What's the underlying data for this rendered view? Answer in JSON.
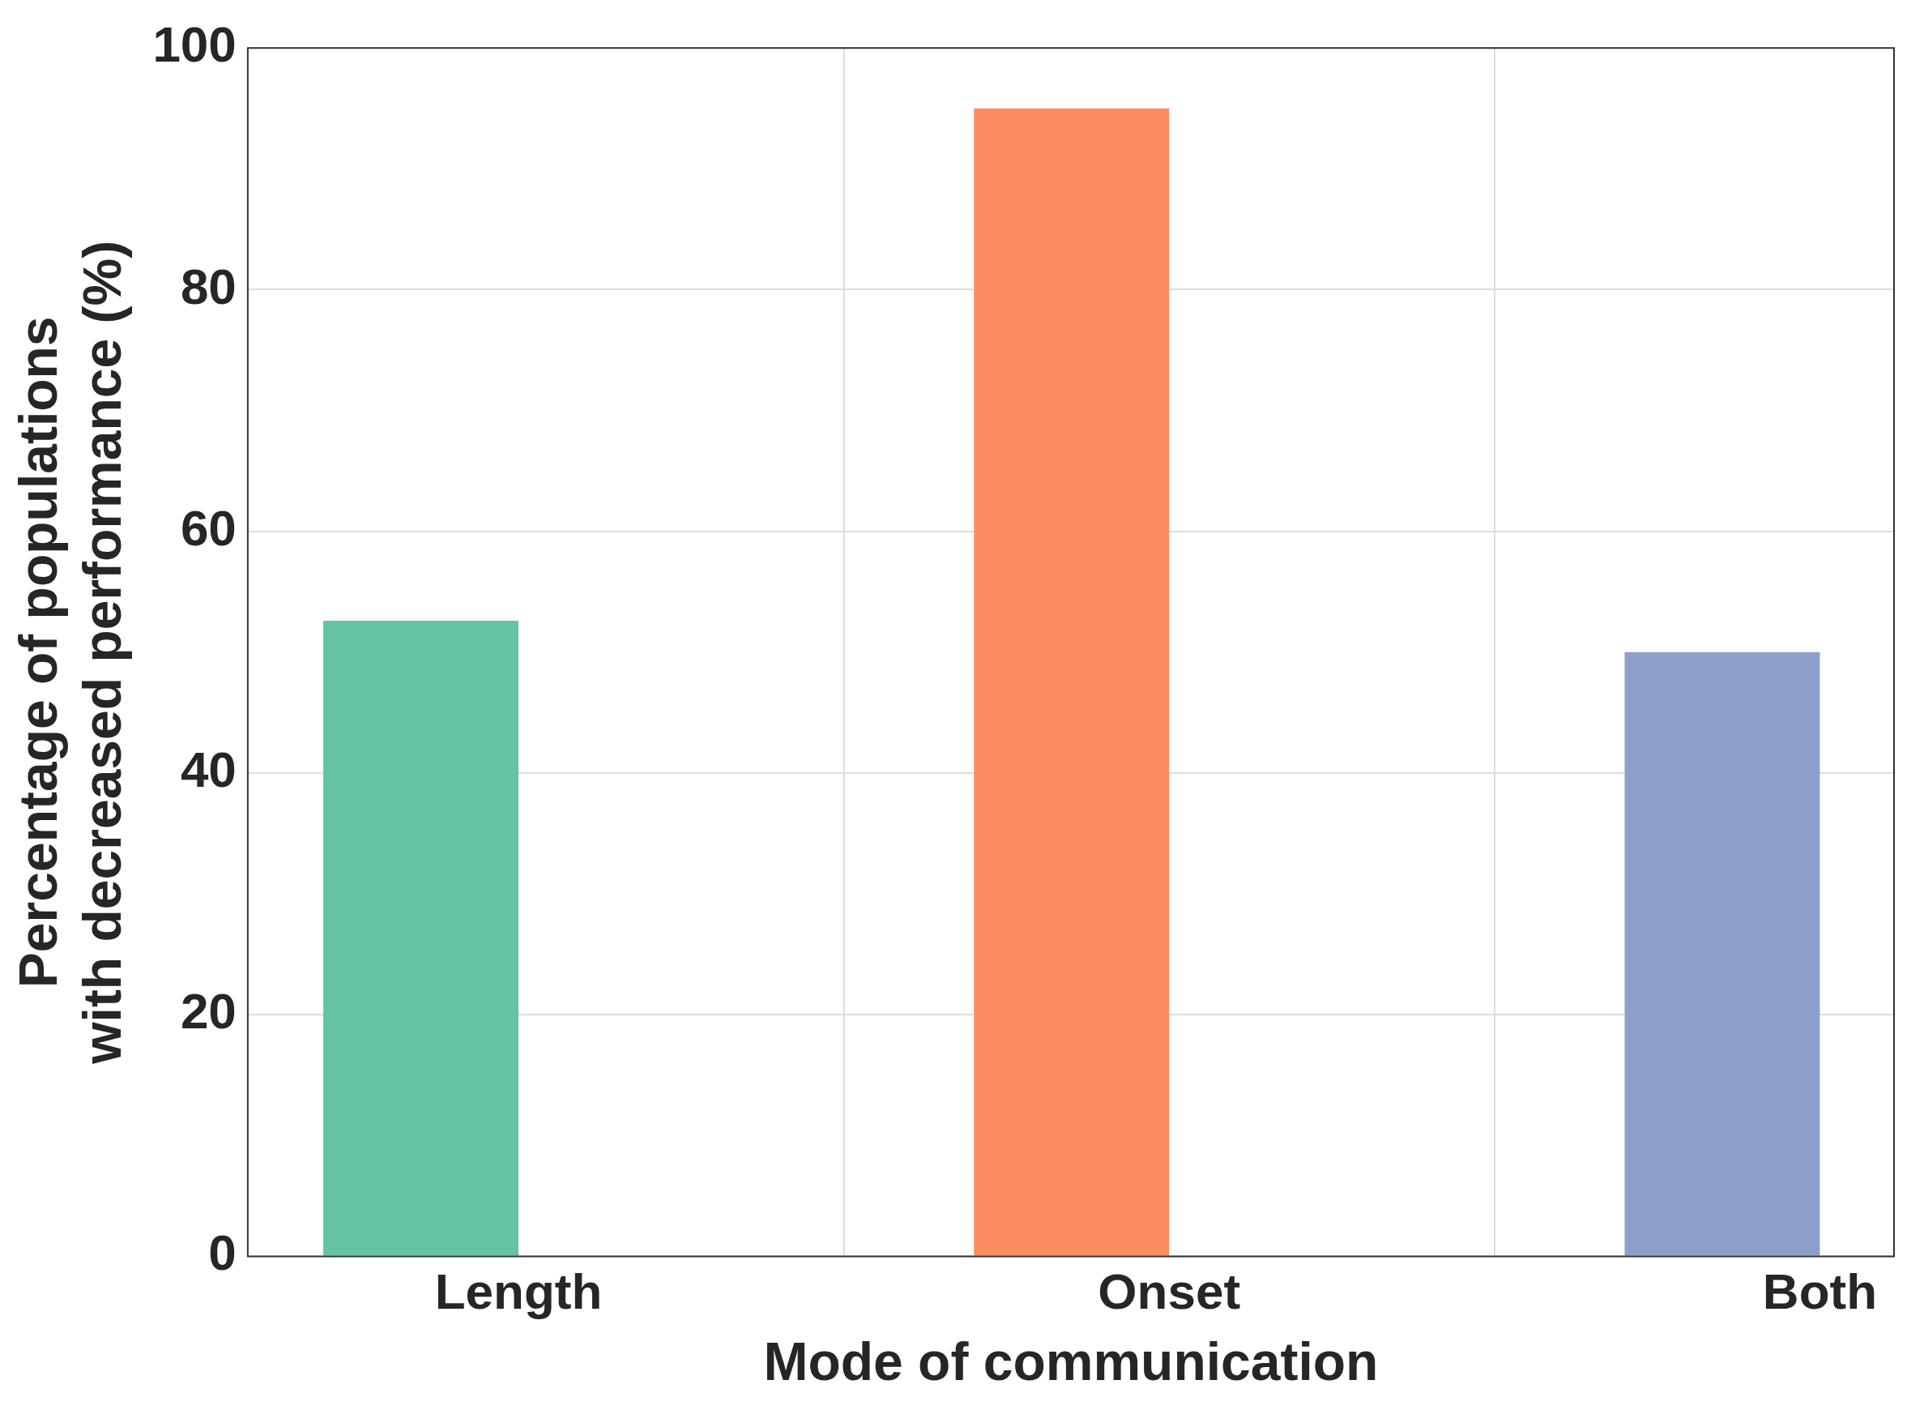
{
  "chart_data": {
    "type": "bar",
    "xlabel": "Mode of communication",
    "ylabel": "Percentage of populations\nwith decreased performance (%)",
    "categories": [
      "Length",
      "Onset",
      "Both"
    ],
    "values": [
      52.6,
      95.0,
      50.0
    ],
    "colors": [
      "#66c2a5",
      "#fc8d62",
      "#8da0cb"
    ],
    "ylim": [
      0,
      100
    ],
    "yticks": [
      0,
      20,
      40,
      60,
      80,
      100
    ],
    "grid": true
  }
}
